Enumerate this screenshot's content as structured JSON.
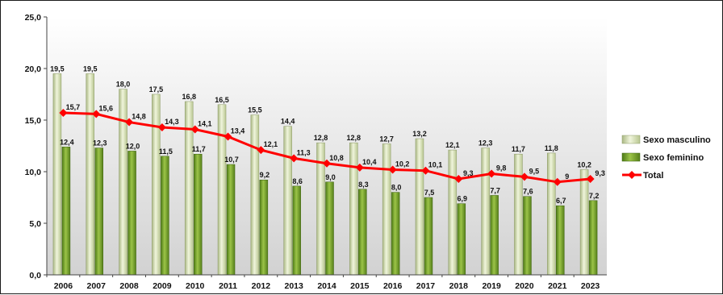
{
  "chart_data": {
    "type": "bar",
    "categories": [
      "2006",
      "2007",
      "2008",
      "2009",
      "2010",
      "2011",
      "2012",
      "2013",
      "2014",
      "2015",
      "2016",
      "2017",
      "2018",
      "2019",
      "2020",
      "2021",
      "2023"
    ],
    "series": [
      {
        "name": "Sexo masculino",
        "kind": "bar",
        "color": "#d4e0a8",
        "values": [
          19.5,
          19.5,
          18.0,
          17.5,
          16.8,
          16.5,
          15.5,
          14.4,
          12.8,
          12.8,
          12.7,
          13.2,
          12.1,
          12.3,
          11.7,
          11.8,
          10.2
        ],
        "labels": [
          "19,5",
          "19,5",
          "18,0",
          "17,5",
          "16,8",
          "16,5",
          "15,5",
          "14,4",
          "12,8",
          "12,8",
          "12,7",
          "13,2",
          "12,1",
          "12,3",
          "11,7",
          "11,8",
          "10,2"
        ]
      },
      {
        "name": "Sexo feminino",
        "kind": "bar",
        "color": "#78a030",
        "values": [
          12.4,
          12.3,
          12.0,
          11.5,
          11.7,
          10.7,
          9.2,
          8.6,
          9.0,
          8.3,
          8.0,
          7.5,
          6.9,
          7.7,
          7.6,
          6.7,
          7.2
        ],
        "labels": [
          "12,4",
          "12,3",
          "12,0",
          "11,5",
          "11,7",
          "10,7",
          "9,2",
          "8,6",
          "9,0",
          "8,3",
          "8,0",
          "7,5",
          "6,9",
          "7,7",
          "7,6",
          "6,7",
          "7,2"
        ]
      },
      {
        "name": "Total",
        "kind": "line",
        "color": "#ff0000",
        "values": [
          15.7,
          15.6,
          14.8,
          14.3,
          14.1,
          13.4,
          12.1,
          11.3,
          10.8,
          10.4,
          10.2,
          10.1,
          9.3,
          9.8,
          9.5,
          9,
          9.3
        ],
        "labels": [
          "15,7",
          "15,6",
          "14,8",
          "14,3",
          "14,1",
          "13,4",
          "12,1",
          "11,3",
          "10,8",
          "10,4",
          "10,2",
          "10,1",
          "9,3",
          "9,8",
          "9,5",
          "9",
          "9,3"
        ]
      }
    ],
    "yticks": [
      "0,0",
      "5,0",
      "10,0",
      "15,0",
      "20,0",
      "25,0"
    ],
    "ylim": [
      0,
      25
    ],
    "grid": false,
    "legend_position": "right",
    "plot_background": "#d9d9d9",
    "title": "",
    "xlabel": "",
    "ylabel": ""
  }
}
